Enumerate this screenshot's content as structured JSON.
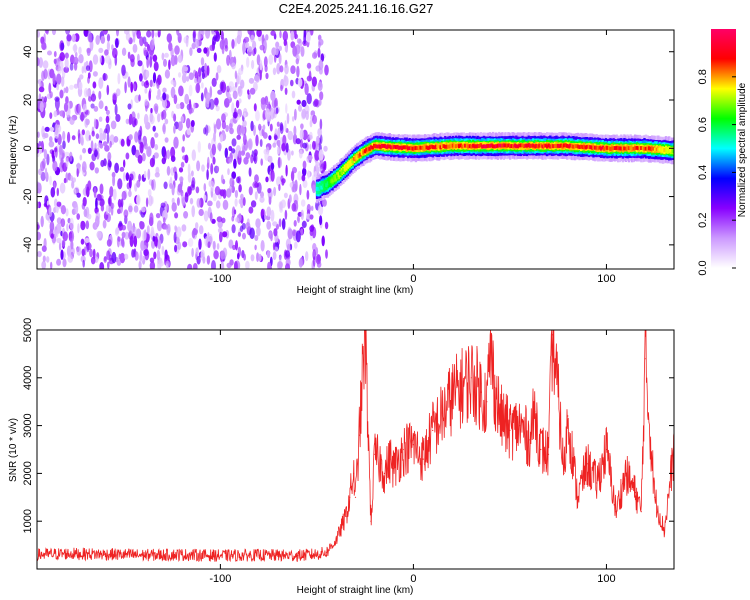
{
  "page": {
    "title": "C2E4.2025.241.16.16.G27"
  },
  "chart_data": [
    {
      "type": "heatmap",
      "title": "C2E4.2025.241.16.16.G27",
      "xlabel": "Height of straight line (km)",
      "ylabel": "Frequency (Hz)",
      "xlim": [
        -195,
        135
      ],
      "ylim": [
        -50,
        49
      ],
      "x_ticks": [
        -100,
        0,
        100
      ],
      "x_tick_labels": [
        "-100",
        "0",
        "100"
      ],
      "y_ticks": [
        -40,
        -20,
        0,
        20,
        40
      ],
      "y_tick_labels": [
        "-40",
        "-20",
        "0",
        "20",
        "40"
      ],
      "grid": false,
      "colorbar": {
        "label": "Normalized spectral amplitude",
        "range": [
          0,
          1
        ],
        "ticks": [
          0.0,
          0.2,
          0.4,
          0.6,
          0.8
        ],
        "tick_labels": [
          "0.0",
          "0.2",
          "0.4",
          "0.6",
          "0.8"
        ],
        "colors": [
          "#ffffff",
          "#cc99ff",
          "#8800ff",
          "#0000ff",
          "#00ffff",
          "#00ff00",
          "#ffff00",
          "#ff0000",
          "#ff0066"
        ]
      },
      "noise_region": {
        "x_range": [
          -195,
          -48
        ],
        "y_range": [
          -50,
          49
        ],
        "typical_amplitude": 0.2
      },
      "signal_ridge": {
        "x": [
          -50,
          -45,
          -40,
          -35,
          -30,
          -25,
          -20,
          0,
          20,
          40,
          60,
          80,
          100,
          120,
          135
        ],
        "frequency": [
          -17,
          -15,
          -12,
          -8,
          -4,
          -1,
          1,
          0,
          1,
          1,
          1,
          1,
          0,
          0,
          -1
        ],
        "amplitude": [
          0.55,
          0.6,
          0.7,
          0.75,
          0.8,
          0.85,
          0.95,
          0.9,
          0.85,
          0.95,
          0.9,
          0.9,
          0.9,
          0.85,
          0.7
        ]
      }
    },
    {
      "type": "line",
      "title": "",
      "xlabel": "Height of straight line (km)",
      "ylabel": "SNR (10 * v/v)",
      "xlim": [
        -195,
        135
      ],
      "ylim": [
        0,
        5000
      ],
      "x_ticks": [
        -100,
        0,
        100
      ],
      "x_tick_labels": [
        "-100",
        "0",
        "100"
      ],
      "y_ticks": [
        1000,
        2000,
        3000,
        4000,
        5000
      ],
      "y_tick_labels": [
        "1000",
        "2000",
        "3000",
        "4000",
        "5000"
      ],
      "grid": false,
      "line_color": "#ee2222",
      "series": [
        {
          "x": [
            -195,
            -180,
            -160,
            -140,
            -120,
            -100,
            -80,
            -60,
            -50,
            -45,
            -40,
            -35,
            -33,
            -31,
            -30,
            -28,
            -25,
            -22,
            -20,
            -17,
            -15,
            -12,
            -10,
            -5,
            0,
            5,
            10,
            15,
            20,
            25,
            30,
            35,
            38,
            40,
            42,
            45,
            50,
            55,
            60,
            63,
            66,
            70,
            72,
            75,
            78,
            80,
            85,
            90,
            95,
            100,
            105,
            110,
            115,
            118,
            120,
            125,
            130,
            135
          ],
          "y": [
            300,
            320,
            310,
            290,
            300,
            280,
            290,
            280,
            310,
            350,
            600,
            1100,
            1500,
            2000,
            1500,
            2800,
            5000,
            1000,
            2400,
            2200,
            2000,
            2300,
            2100,
            2500,
            2600,
            2300,
            2900,
            3200,
            3600,
            3800,
            4000,
            3700,
            3500,
            4600,
            3800,
            3200,
            2900,
            3000,
            2700,
            3300,
            2500,
            2400,
            4900,
            3600,
            2000,
            3200,
            1500,
            2200,
            1800,
            2500,
            1200,
            2000,
            1600,
            1200,
            4400,
            1500,
            800,
            2500
          ]
        }
      ]
    }
  ]
}
